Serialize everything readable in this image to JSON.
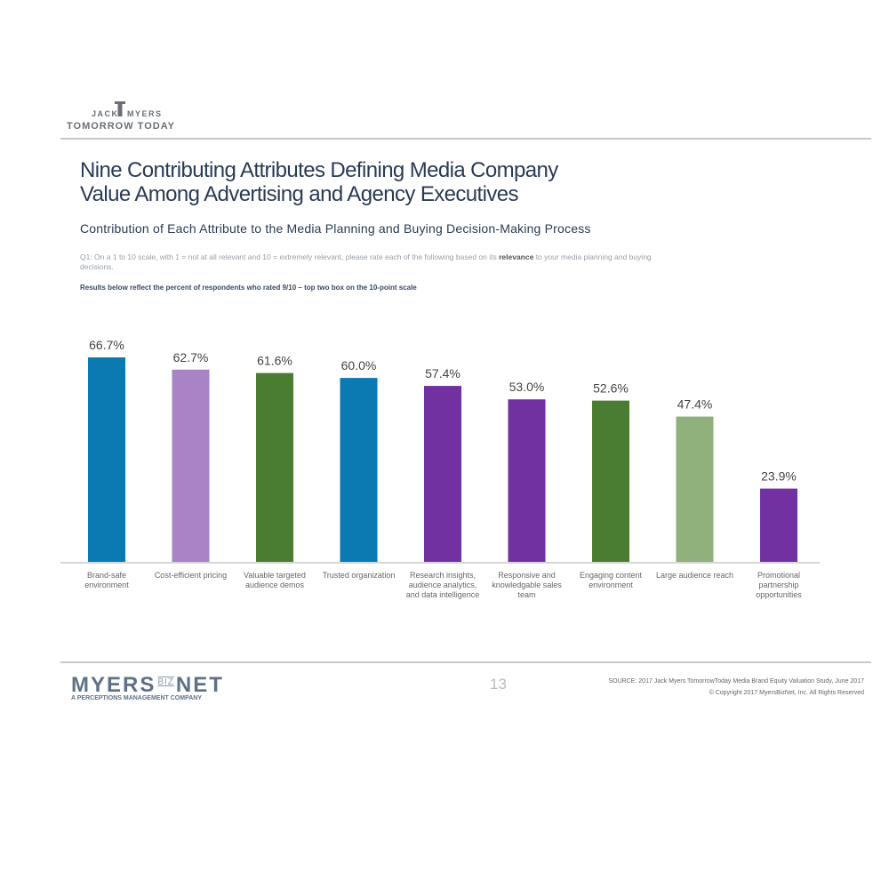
{
  "header": {
    "logo_line1_left": "JACK",
    "logo_line1_right": "MYERS",
    "logo_line2": "TOMORROW TODAY"
  },
  "slide": {
    "title_line1": "Nine Contributing Attributes Defining Media Company",
    "title_line2": "Value Among Advertising and Agency Executives",
    "subtitle": "Contribution of Each Attribute to the Media Planning and Buying Decision-Making Process",
    "question_part1": "Q1: On a 1 to 10 scale, with 1 = not at all relevant and 10 = extremely relevant, please rate each of the following based on its ",
    "question_bold": "relevance",
    "question_part2": " to your media planning and buying decisions.",
    "results_note": "Results below reflect the percent of respondents who rated 9/10 – top two box on the 10-point scale"
  },
  "chart_data": {
    "type": "bar",
    "title": "Contribution of Each Attribute to the Media Planning and Buying Decision-Making Process",
    "xlabel": "",
    "ylabel": "",
    "ylim": [
      0,
      70
    ],
    "grid": false,
    "categories": [
      "Brand-safe environment",
      "Cost-efficient pricing",
      "Valuable targeted audience demos",
      "Trusted organization",
      "Research insights, audience analytics, and data intelligence",
      "Responsive and knowledgable sales team",
      "Engaging content environment",
      "Large audience reach",
      "Promotional partnership opportunities"
    ],
    "values": [
      66.7,
      62.7,
      61.6,
      60.0,
      57.4,
      53.0,
      52.6,
      47.4,
      23.9
    ],
    "data_labels": [
      "66.7%",
      "62.7%",
      "61.6%",
      "60.0%",
      "57.4%",
      "53.0%",
      "52.6%",
      "47.4%",
      "23.9%"
    ],
    "colors": [
      "#0b7ab3",
      "#a883c6",
      "#4a7d32",
      "#0b7ab3",
      "#7231a0",
      "#7231a0",
      "#4a7d32",
      "#90b07c",
      "#7231a0"
    ]
  },
  "footer": {
    "logo_left": "MYERS",
    "logo_mid": "BIZ",
    "logo_right": "NET",
    "logo_tagline": "A PERCEPTIONS MANAGEMENT COMPANY",
    "page_number": "13",
    "source": "SOURCE: 2017 Jack Myers TomorrowToday Media Brand Equity Valuation Study, June 2017",
    "copyright": "© Copyright 2017 MyersBizNet, Inc. All Rights Reserved"
  }
}
